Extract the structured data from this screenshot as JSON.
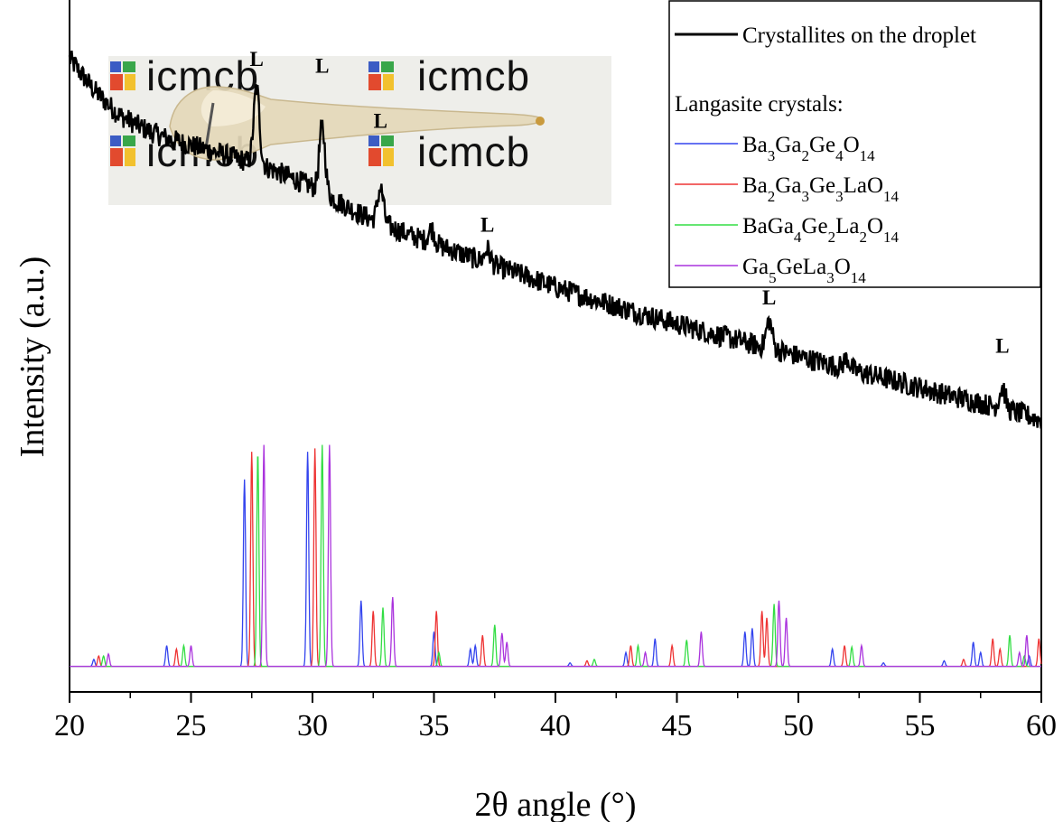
{
  "chart_data": {
    "type": "line",
    "xlabel": "2θ angle (°)",
    "ylabel": "Intensity (a.u.)",
    "xlim": [
      20,
      60
    ],
    "x_ticks": [
      20,
      25,
      30,
      35,
      40,
      45,
      50,
      55,
      60
    ],
    "grid": false,
    "legend": {
      "placement": "top-right",
      "main_entry": "Crystallites on the droplet",
      "group_title": "Langasite crystals:",
      "entries": [
        {
          "base": [
            "Ba",
            "3",
            "Ga",
            "2",
            "Ge",
            "4",
            "O",
            "14"
          ],
          "color": "#3344ee"
        },
        {
          "base": [
            "Ba",
            "2",
            "Ga",
            "3",
            "Ge",
            "3",
            "LaO",
            "14"
          ],
          "color": "#ee3333"
        },
        {
          "base": [
            "BaGa",
            "4",
            "Ge",
            "2",
            "La",
            "2",
            "O",
            "14"
          ],
          "color": "#33dd44"
        },
        {
          "base": [
            "Ga",
            "5",
            "GeLa",
            "3",
            "O",
            "14"
          ],
          "color": "#aa33dd"
        }
      ]
    },
    "peak_annotations": [
      {
        "text": "L",
        "x": 27.7,
        "y": 0.905
      },
      {
        "text": "L",
        "x": 30.4,
        "y": 0.895
      },
      {
        "text": "L",
        "x": 32.8,
        "y": 0.815
      },
      {
        "text": "L",
        "x": 37.2,
        "y": 0.665
      },
      {
        "text": "L",
        "x": 48.8,
        "y": 0.56
      },
      {
        "text": "L",
        "x": 58.4,
        "y": 0.49
      }
    ],
    "measured_series": {
      "name": "Crystallites on the droplet",
      "color": "#000000",
      "baseline": [
        [
          20,
          0.915
        ],
        [
          21,
          0.87
        ],
        [
          22,
          0.835
        ],
        [
          23,
          0.815
        ],
        [
          24,
          0.8
        ],
        [
          25,
          0.79
        ],
        [
          26,
          0.78
        ],
        [
          27,
          0.77
        ],
        [
          28,
          0.76
        ],
        [
          29,
          0.745
        ],
        [
          30,
          0.73
        ],
        [
          31,
          0.71
        ],
        [
          32,
          0.69
        ],
        [
          33,
          0.675
        ],
        [
          34,
          0.66
        ],
        [
          35,
          0.648
        ],
        [
          36,
          0.635
        ],
        [
          37,
          0.622
        ],
        [
          38,
          0.61
        ],
        [
          39,
          0.598
        ],
        [
          40,
          0.585
        ],
        [
          41,
          0.574
        ],
        [
          42,
          0.563
        ],
        [
          43,
          0.552
        ],
        [
          44,
          0.542
        ],
        [
          45,
          0.532
        ],
        [
          46,
          0.522
        ],
        [
          47,
          0.513
        ],
        [
          48,
          0.503
        ],
        [
          49,
          0.495
        ],
        [
          50,
          0.485
        ],
        [
          51,
          0.476
        ],
        [
          52,
          0.467
        ],
        [
          53,
          0.458
        ],
        [
          54,
          0.449
        ],
        [
          55,
          0.44
        ],
        [
          56,
          0.43
        ],
        [
          57,
          0.422
        ],
        [
          58,
          0.413
        ],
        [
          59,
          0.404
        ],
        [
          60,
          0.393
        ]
      ],
      "peaks": [
        [
          27.7,
          0.11
        ],
        [
          30.4,
          0.095
        ],
        [
          32.8,
          0.05
        ],
        [
          34.9,
          0.02
        ],
        [
          37.2,
          0.02
        ],
        [
          48.8,
          0.04
        ],
        [
          52.0,
          0.015
        ],
        [
          58.4,
          0.03
        ]
      ]
    },
    "reference_series": [
      {
        "name": "Ba3Ga2Ge4O14",
        "color": "#3344ee",
        "peaks": [
          [
            21.0,
            0.01
          ],
          [
            24.0,
            0.03
          ],
          [
            27.2,
            0.27
          ],
          [
            29.8,
            0.31
          ],
          [
            32.0,
            0.095
          ],
          [
            35.0,
            0.05
          ],
          [
            36.5,
            0.025
          ],
          [
            36.7,
            0.03
          ],
          [
            40.6,
            0.005
          ],
          [
            42.9,
            0.02
          ],
          [
            44.1,
            0.04
          ],
          [
            47.8,
            0.05
          ],
          [
            48.1,
            0.055
          ],
          [
            51.4,
            0.025
          ],
          [
            53.5,
            0.005
          ],
          [
            56.0,
            0.008
          ],
          [
            57.2,
            0.035
          ],
          [
            57.5,
            0.02
          ],
          [
            59.5,
            0.015
          ]
        ]
      },
      {
        "name": "Ba2Ga3Ge3LaO14",
        "color": "#ee3333",
        "peaks": [
          [
            21.2,
            0.015
          ],
          [
            24.4,
            0.025
          ],
          [
            27.5,
            0.31
          ],
          [
            30.1,
            0.315
          ],
          [
            32.5,
            0.08
          ],
          [
            35.1,
            0.08
          ],
          [
            37.0,
            0.045
          ],
          [
            41.3,
            0.008
          ],
          [
            43.1,
            0.03
          ],
          [
            44.8,
            0.03
          ],
          [
            48.5,
            0.08
          ],
          [
            48.7,
            0.07
          ],
          [
            51.9,
            0.03
          ],
          [
            56.8,
            0.01
          ],
          [
            58.0,
            0.04
          ],
          [
            58.3,
            0.025
          ],
          [
            59.9,
            0.04
          ]
        ]
      },
      {
        "name": "BaGa4Ge2La2O14",
        "color": "#33dd44",
        "peaks": [
          [
            21.4,
            0.015
          ],
          [
            24.7,
            0.03
          ],
          [
            27.75,
            0.31
          ],
          [
            30.4,
            0.32
          ],
          [
            32.9,
            0.085
          ],
          [
            35.2,
            0.02
          ],
          [
            37.5,
            0.06
          ],
          [
            41.6,
            0.01
          ],
          [
            43.4,
            0.03
          ],
          [
            45.4,
            0.038
          ],
          [
            49.0,
            0.09
          ],
          [
            52.2,
            0.028
          ],
          [
            58.7,
            0.045
          ],
          [
            59.3,
            0.015
          ]
        ]
      },
      {
        "name": "Ga5GeLa3O14",
        "color": "#aa33dd",
        "peaks": [
          [
            21.6,
            0.018
          ],
          [
            25.0,
            0.03
          ],
          [
            28.0,
            0.32
          ],
          [
            30.7,
            0.32
          ],
          [
            33.3,
            0.1
          ],
          [
            37.8,
            0.048
          ],
          [
            38.0,
            0.035
          ],
          [
            43.7,
            0.02
          ],
          [
            46.0,
            0.05
          ],
          [
            49.2,
            0.095
          ],
          [
            49.5,
            0.07
          ],
          [
            52.6,
            0.03
          ],
          [
            59.1,
            0.02
          ],
          [
            59.4,
            0.045
          ]
        ]
      }
    ]
  },
  "inset_photo": {
    "logo_texts": [
      "icmcb",
      "icmcb",
      "icmcb",
      "icmcb"
    ]
  }
}
